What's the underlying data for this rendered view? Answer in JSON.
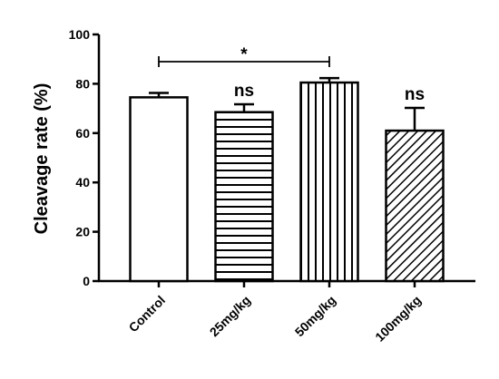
{
  "chart_data": {
    "type": "bar",
    "ylabel": "Cleavage rate (%)",
    "xlabel": "",
    "ylim": [
      0,
      100
    ],
    "yticks": [
      0,
      20,
      40,
      60,
      80,
      100
    ],
    "categories": [
      "Control",
      "25mg/kg",
      "50mg/kg",
      "100mg/kg"
    ],
    "values": [
      74.5,
      68.5,
      80.5,
      61
    ],
    "errors": [
      1.8,
      3.2,
      1.8,
      9.2
    ],
    "patterns": [
      "none",
      "horizontal",
      "vertical",
      "diagonal"
    ],
    "annotations": [
      "",
      "ns",
      "",
      "ns"
    ],
    "significance": {
      "from": "Control",
      "to": "50mg/kg",
      "label": "*"
    },
    "grid": false,
    "legend": "none"
  }
}
